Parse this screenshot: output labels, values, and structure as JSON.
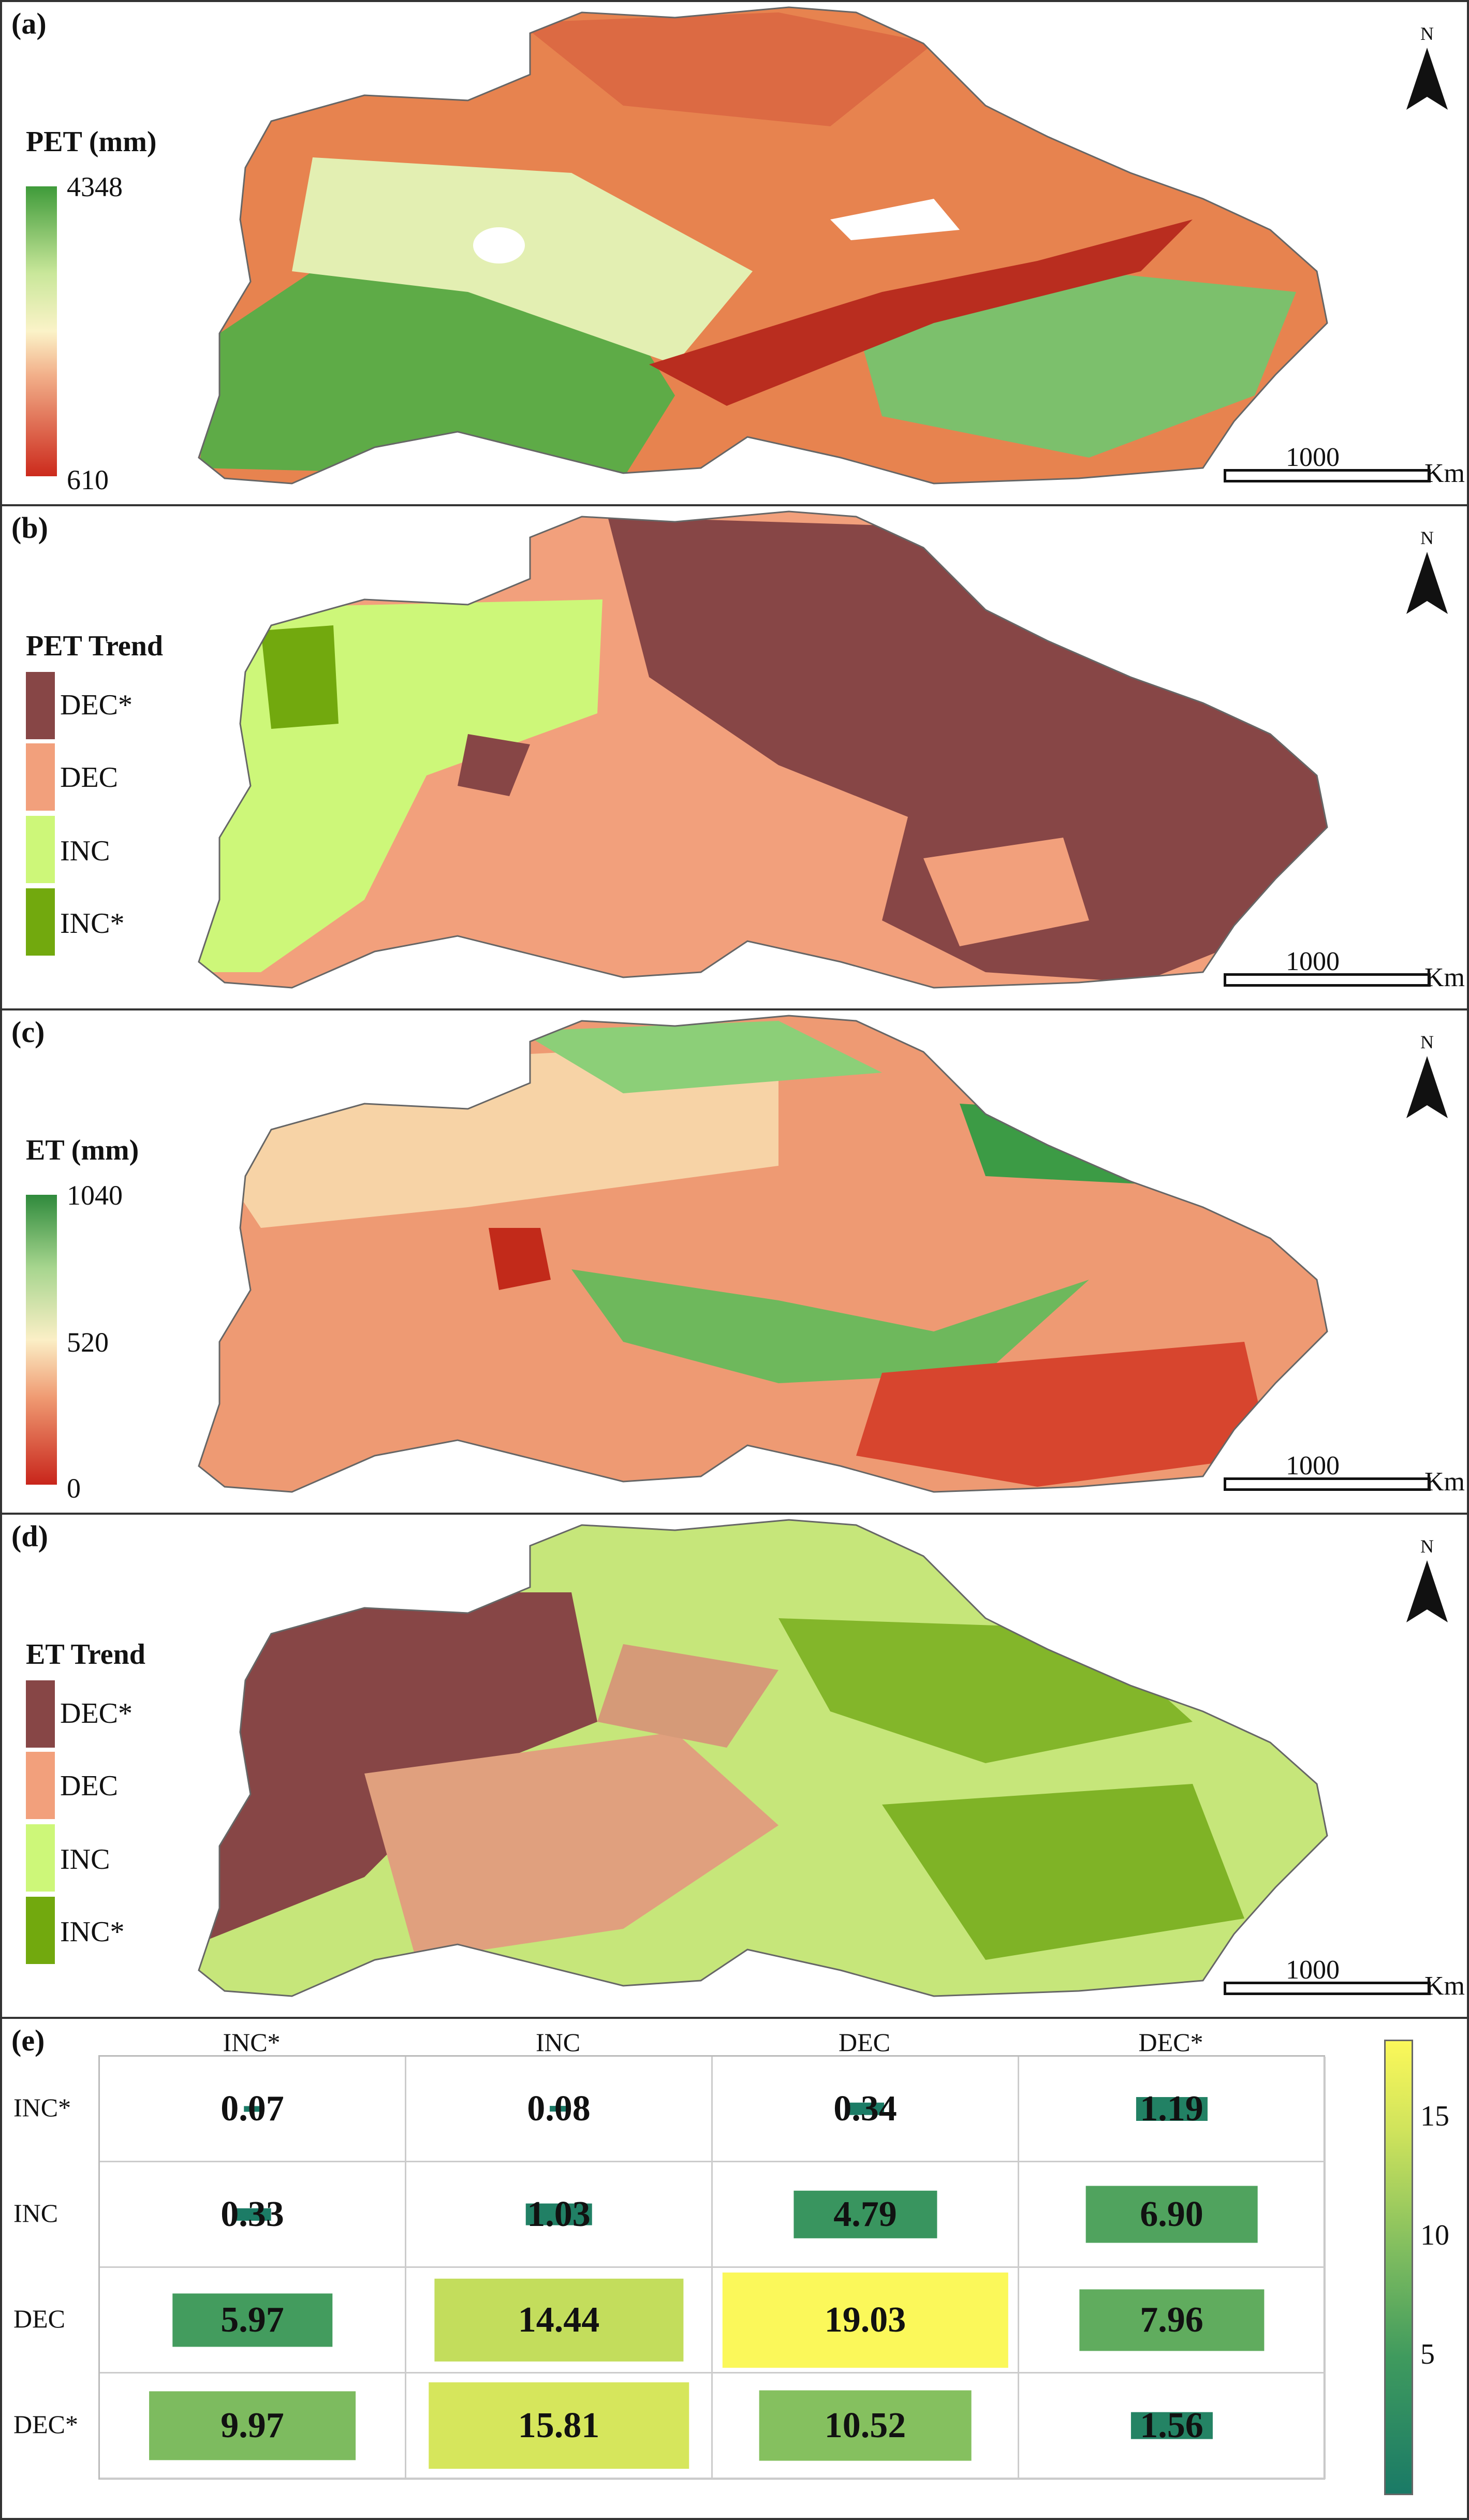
{
  "colors": {
    "dec_star": "#874646",
    "dec": "#f2a07c",
    "inc": "#cdf779",
    "inc_star": "#72a90e",
    "pet_high": "#3f9b3a",
    "pet_low": "#cc2a1c",
    "et_high": "#2f8a3c",
    "et_low": "#c8251b"
  },
  "north_label": "N",
  "scale": {
    "value": "1000",
    "unit": "Km"
  },
  "panels": {
    "a": {
      "label": "(a)",
      "legend_title": "PET (mm)",
      "max": "4348",
      "min": "610"
    },
    "b": {
      "label": "(b)",
      "legend_title": "PET Trend",
      "categories": [
        "DEC*",
        "DEC",
        "INC",
        "INC*"
      ]
    },
    "c": {
      "label": "(c)",
      "legend_title": "ET (mm)",
      "max": "1040",
      "mid": "520",
      "min": "0"
    },
    "d": {
      "label": "(d)",
      "legend_title": "ET Trend",
      "categories": [
        "DEC*",
        "DEC",
        "INC",
        "INC*"
      ]
    },
    "e": {
      "label": "(e)",
      "colorbar_ticks": [
        "15",
        "10",
        "5"
      ],
      "colorbar_range": [
        0,
        19
      ]
    }
  },
  "chart_data": {
    "type": "heatmap",
    "title": "",
    "columns": [
      "INC*",
      "INC",
      "DEC",
      "DEC*"
    ],
    "rows": [
      "INC*",
      "INC",
      "DEC",
      "DEC*"
    ],
    "values": [
      [
        0.07,
        0.08,
        0.34,
        1.19
      ],
      [
        0.33,
        1.03,
        4.79,
        6.9
      ],
      [
        5.97,
        14.44,
        19.03,
        7.96
      ],
      [
        9.97,
        15.81,
        10.52,
        1.56
      ]
    ],
    "labels": [
      [
        "0.07",
        "0.08",
        "0.34",
        "1.19"
      ],
      [
        "0.33",
        "1.03",
        "4.79",
        "6.90"
      ],
      [
        "5.97",
        "14.44",
        "19.03",
        "7.96"
      ],
      [
        "9.97",
        "15.81",
        "10.52",
        "1.56"
      ]
    ],
    "zlim": [
      0,
      19
    ]
  }
}
